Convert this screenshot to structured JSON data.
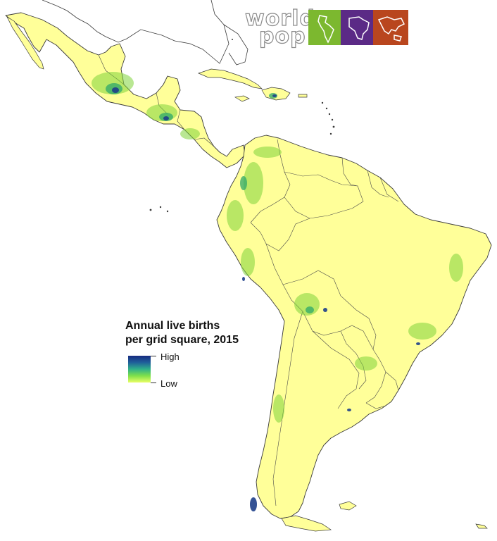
{
  "logo": {
    "word_top": "world",
    "word_bottom": "pop",
    "tiles": [
      {
        "name": "americas-tile",
        "color": "#7cb82f"
      },
      {
        "name": "africa-tile",
        "color": "#5b2a86"
      },
      {
        "name": "asia-tile",
        "color": "#b9461e"
      }
    ]
  },
  "legend": {
    "title": "Annual live births\nper grid square, 2015",
    "high_label": "High",
    "low_label": "Low",
    "ramp_colors": [
      "#172a80",
      "#1f5f9a",
      "#2fb08a",
      "#7fe04a",
      "#eaff66"
    ]
  },
  "map": {
    "land_color": "#ffff99",
    "ocean_color": "#ffffff",
    "border_color": "#3a3a3a"
  }
}
